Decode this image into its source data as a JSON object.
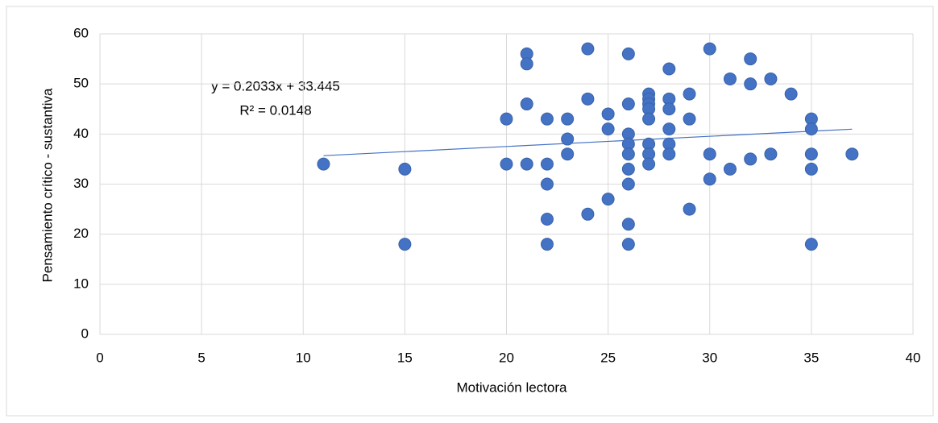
{
  "chart_data": {
    "type": "scatter",
    "x_label": "Motivación lectora",
    "y_label": "Pensamiento crítico - sustantiva",
    "annotations": [
      "y = 0.2033x + 33.445",
      "R² = 0.0148"
    ],
    "trendline": {
      "slope": 0.2033,
      "intercept": 33.445,
      "color": "#4472c4"
    },
    "series": [
      {
        "color": "#4472c4",
        "x": [
          11,
          15,
          15,
          20,
          20,
          21,
          21,
          21,
          21,
          22,
          22,
          22,
          22,
          22,
          23,
          23,
          23,
          24,
          24,
          24,
          25,
          25,
          25,
          26,
          26,
          26,
          26,
          26,
          26,
          26,
          26,
          26,
          27,
          27,
          27,
          27,
          27,
          27,
          27,
          27,
          28,
          28,
          28,
          28,
          28,
          28,
          29,
          29,
          29,
          30,
          30,
          30,
          31,
          31,
          32,
          32,
          32,
          33,
          33,
          34,
          35,
          35,
          35,
          35,
          35,
          37
        ],
        "values": [
          34,
          33,
          18,
          43,
          34,
          56,
          54,
          46,
          34,
          43,
          34,
          30,
          23,
          18,
          43,
          39,
          36,
          57,
          47,
          24,
          44,
          41,
          27,
          56,
          46,
          40,
          38,
          36,
          33,
          30,
          22,
          18,
          48,
          47,
          46,
          45,
          43,
          38,
          36,
          34,
          53,
          47,
          45,
          41,
          38,
          36,
          48,
          43,
          25,
          57,
          36,
          31,
          51,
          33,
          55,
          50,
          35,
          51,
          36,
          48,
          43,
          41,
          36,
          33,
          18,
          36
        ]
      }
    ],
    "xlim": [
      0,
      40
    ],
    "xticks": [
      0,
      5,
      10,
      15,
      20,
      25,
      30,
      35,
      40
    ],
    "ylim": [
      0,
      60
    ],
    "yticks": [
      0,
      10,
      20,
      30,
      40,
      50,
      60
    ],
    "grid": true
  }
}
